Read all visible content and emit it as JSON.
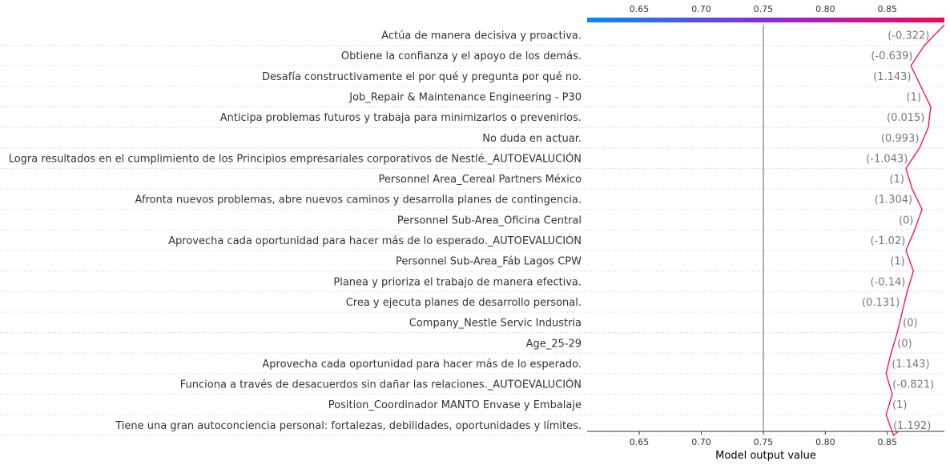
{
  "chart_data": {
    "type": "decision",
    "xlabel": "Model output value",
    "xlim": [
      0.608,
      0.896
    ],
    "xticks": [
      0.65,
      0.7,
      0.75,
      0.8,
      0.85
    ],
    "xtick_labels": [
      "0.65",
      "0.70",
      "0.75",
      "0.80",
      "0.85"
    ],
    "base_value": 0.75,
    "grid": "dotted horizontal row lines",
    "colorbar": {
      "from_color": "#008bfb",
      "mid_color": "#8a2be2",
      "to_color": "#ff0051",
      "position": "top"
    },
    "line_color": "#ff0051",
    "features": [
      {
        "label": "Actúa de manera decisiva y proactiva.",
        "value_label": "(-0.322)",
        "x_top": 0.896,
        "x_bottom": 0.88
      },
      {
        "label": "Obtiene la confianza y el apoyo de los demás.",
        "value_label": "(-0.639)",
        "x_bottom": 0.869
      },
      {
        "label": "Desafía constructivamente el por qué y pregunta por qué no.",
        "value_label": "(1.143)",
        "x_bottom": 0.877
      },
      {
        "label": "Job_Repair & Maintenance Engineering - P30",
        "value_label": "(1)",
        "x_bottom": 0.885
      },
      {
        "label": "Anticipa problemas futuros y trabaja para minimizarlos o prevenirlos.",
        "value_label": "(0.015)",
        "x_bottom": 0.883
      },
      {
        "label": "No duda en actuar.",
        "value_label": "(0.993)",
        "x_bottom": 0.876
      },
      {
        "label": "Logra resultados en el cumplimiento de los Principios empresariales corporativos de Nestlé._AUTOEVALUCIÓN",
        "value_label": "(-1.043)",
        "x_bottom": 0.865
      },
      {
        "label": "Personnel Area_Cereal Partners México",
        "value_label": "(1)",
        "x_bottom": 0.87
      },
      {
        "label": "Afronta nuevos problemas, abre nuevos caminos y desarrolla planes de contingencia.",
        "value_label": "(1.304)",
        "x_bottom": 0.878
      },
      {
        "label": "Personnel Sub-Area_Oficina Central",
        "value_label": "(0)",
        "x_bottom": 0.872
      },
      {
        "label": "Aprovecha cada oportunidad para hacer más de lo esperado._AUTOEVALUCIÓN",
        "value_label": "(-1.02)",
        "x_bottom": 0.865
      },
      {
        "label": "Personnel Sub-Area_Fáb Lagos CPW",
        "value_label": "(1)",
        "x_bottom": 0.871
      },
      {
        "label": "Planea y prioriza el trabajo de manera efectiva.",
        "value_label": "(-0.14)",
        "x_bottom": 0.866
      },
      {
        "label": "Crea y ejecuta planes de desarrollo personal.",
        "value_label": "(0.131)",
        "x_bottom": 0.862
      },
      {
        "label": "Company_Nestle Servic Industria",
        "value_label": "(0)",
        "x_bottom": 0.858
      },
      {
        "label": "Age_25-29",
        "value_label": "(0)",
        "x_bottom": 0.853
      },
      {
        "label": "Aprovecha cada oportunidad para hacer más de lo esperado.",
        "value_label": "(1.143)",
        "x_bottom": 0.849
      },
      {
        "label": "Funciona a través de desacuerdos sin dañar las relaciones._AUTOEVALUCIÓN",
        "value_label": "(-0.821)",
        "x_bottom": 0.854
      },
      {
        "label": "Position_Coordinador MANTO Envase y Embalaje",
        "value_label": "(1)",
        "x_bottom": 0.849
      },
      {
        "label": "Tiene una gran autoconciencia personal: fortalezas, debilidades, oportunidades y límites.",
        "value_label": "(1.192)",
        "x_bottom": 0.855
      }
    ],
    "final_x": 0.859
  }
}
